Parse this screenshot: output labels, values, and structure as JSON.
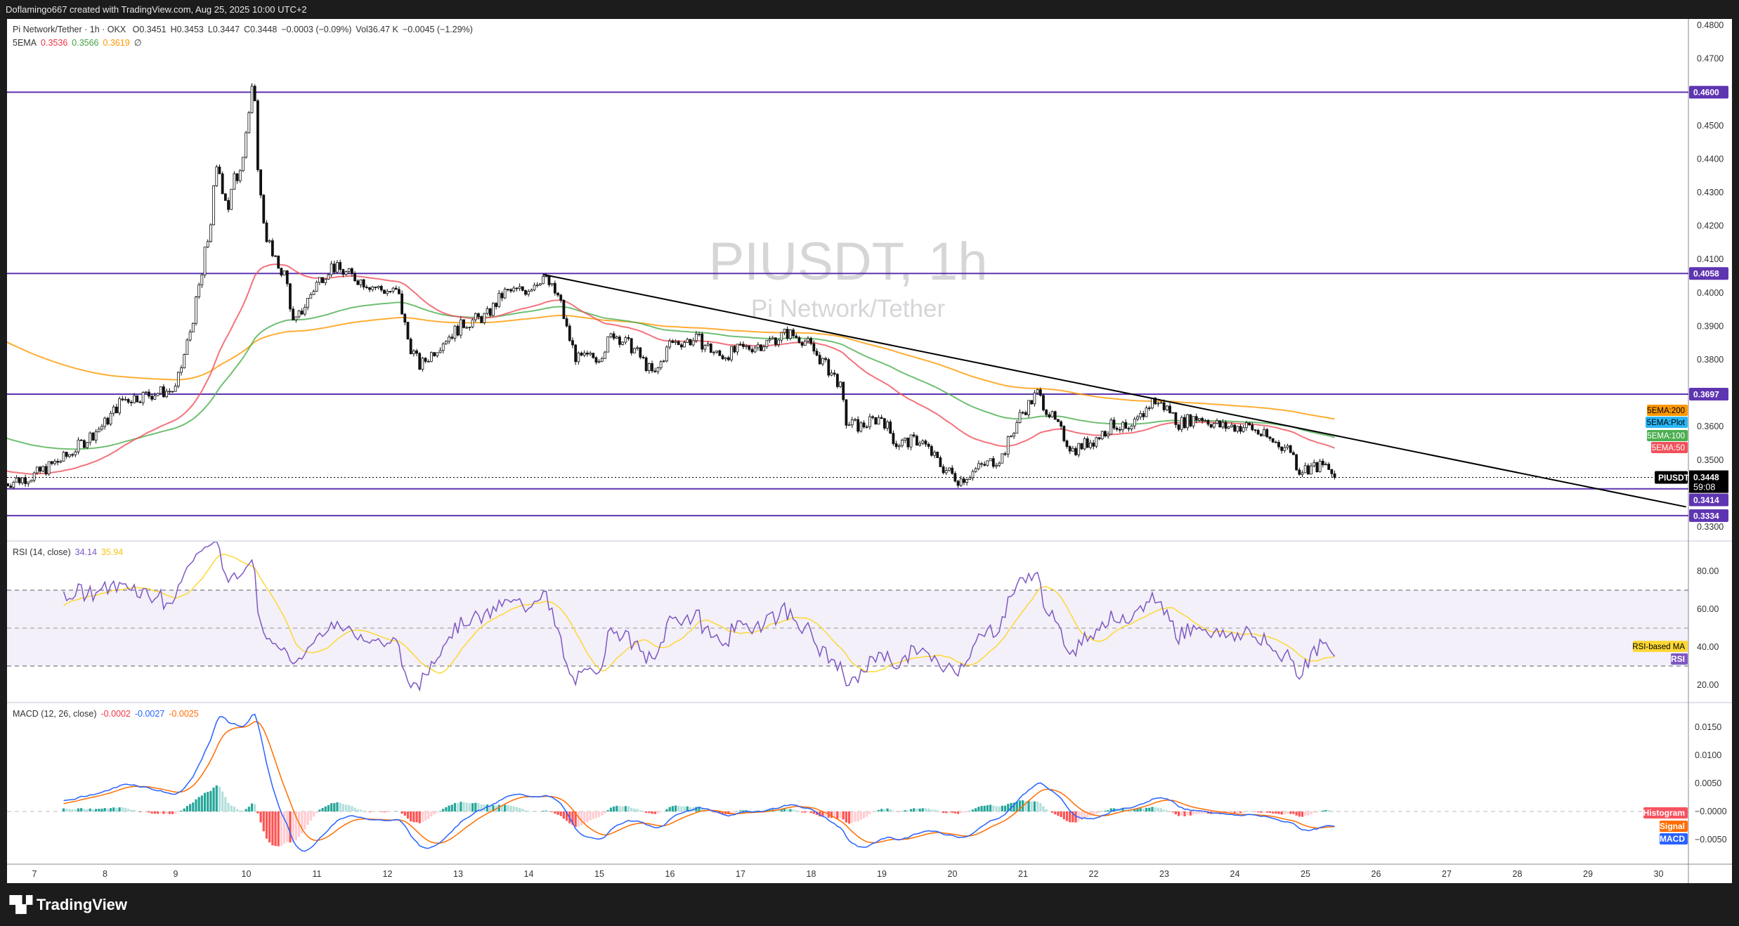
{
  "topbar": {
    "credit": "Doflamingo667 created with TradingView.com, Aug 25, 2025 10:00 UTC+2"
  },
  "legend": {
    "symbol": "Pi Network/Tether · 1h · OKX",
    "open": "O0.3451",
    "high": "H0.3453",
    "low": "L0.3447",
    "close": "C0.3448",
    "change": "−0.0003 (−0.09%)",
    "volume": "Vol36.47 K",
    "vol_change": "−0.0045 (−1.29%)",
    "ema_label": "5EMA",
    "ema50": "0.3536",
    "ema100": "0.3566",
    "ema200": "0.3619",
    "ema_extra": "∅"
  },
  "watermark": {
    "title": "PIUSDT, 1h",
    "subtitle": "Pi Network/Tether"
  },
  "colors": {
    "up": "#089981",
    "down": "#f23645",
    "level": "#5e35b1",
    "ema50": "#f0505a",
    "ema100": "#4caf50",
    "ema200": "#ff9800",
    "ema_plot": "#29b6f6",
    "rsi": "#7e57c2",
    "rsi_ma": "#fdd835",
    "macd": "#2962ff",
    "signal": "#ff6d00"
  },
  "price_axis": {
    "ticks": [
      "0.4800",
      "0.4700",
      "0.4500",
      "0.4400",
      "0.4300",
      "0.4200",
      "0.4100",
      "0.4000",
      "0.3900",
      "0.3800",
      "0.3600",
      "0.3500",
      "0.3300"
    ],
    "levels": [
      "0.4600",
      "0.4058",
      "0.3697",
      "0.3414",
      "0.3334"
    ],
    "current": {
      "symbol": "PIUSDT",
      "price": "0.3448",
      "countdown": "59:08"
    },
    "ema_tags": [
      "5EMA:200",
      "5EMA:Plot",
      "5EMA:100",
      "5EMA:50"
    ]
  },
  "rsi": {
    "label": "RSI (14, close)",
    "value": "34.14",
    "ma_value": "35.94",
    "ticks": [
      "80.00",
      "60.00",
      "40.00",
      "20.00"
    ],
    "tags": [
      "RSI-based MA",
      "RSI"
    ],
    "bands": [
      70,
      50,
      30
    ]
  },
  "macd": {
    "label": "MACD (12, 26, close)",
    "hist": "-0.0002",
    "macd": "-0.0027",
    "signal": "-0.0025",
    "ticks": [
      "0.0150",
      "0.0100",
      "0.0050",
      "−0.0000",
      "−0.0050"
    ],
    "tags": [
      "Histogram",
      "Signal",
      "MACD"
    ]
  },
  "time_axis": {
    "ticks": [
      "7",
      "8",
      "9",
      "10",
      "11",
      "12",
      "13",
      "14",
      "15",
      "16",
      "17",
      "18",
      "19",
      "20",
      "21",
      "22",
      "23",
      "24",
      "25",
      "26",
      "27",
      "28",
      "29",
      "30"
    ]
  },
  "brand": {
    "name": "TradingView"
  },
  "chart_data": {
    "type": "candlestick",
    "symbol": "PIUSDT",
    "interval": "1h",
    "x_unit": "day of August 2025",
    "ylim": [
      0.33,
      0.48
    ],
    "grid": false,
    "price_path": [
      [
        6.58,
        0.343
      ],
      [
        7.0,
        0.3455
      ],
      [
        7.45,
        0.351
      ],
      [
        8.0,
        0.361
      ],
      [
        8.24,
        0.368
      ],
      [
        8.7,
        0.37
      ],
      [
        9.0,
        0.371
      ],
      [
        9.2,
        0.388
      ],
      [
        9.4,
        0.408
      ],
      [
        9.6,
        0.438
      ],
      [
        9.75,
        0.426
      ],
      [
        9.9,
        0.438
      ],
      [
        10.1,
        0.461
      ],
      [
        10.2,
        0.428
      ],
      [
        10.35,
        0.411
      ],
      [
        10.56,
        0.405
      ],
      [
        10.67,
        0.39
      ],
      [
        11.0,
        0.403
      ],
      [
        11.2,
        0.408
      ],
      [
        11.5,
        0.405
      ],
      [
        11.9,
        0.401
      ],
      [
        12.15,
        0.4
      ],
      [
        12.3,
        0.385
      ],
      [
        12.46,
        0.378
      ],
      [
        12.8,
        0.386
      ],
      [
        13.1,
        0.391
      ],
      [
        13.4,
        0.393
      ],
      [
        13.65,
        0.4
      ],
      [
        13.97,
        0.401
      ],
      [
        14.2,
        0.405
      ],
      [
        14.44,
        0.398
      ],
      [
        14.55,
        0.388
      ],
      [
        14.68,
        0.38
      ],
      [
        15.0,
        0.381
      ],
      [
        15.2,
        0.388
      ],
      [
        15.5,
        0.383
      ],
      [
        15.78,
        0.375
      ],
      [
        16.0,
        0.385
      ],
      [
        16.4,
        0.386
      ],
      [
        16.7,
        0.381
      ],
      [
        17.0,
        0.383
      ],
      [
        17.35,
        0.385
      ],
      [
        17.66,
        0.388
      ],
      [
        17.9,
        0.386
      ],
      [
        18.1,
        0.381
      ],
      [
        18.4,
        0.373
      ],
      [
        18.5,
        0.361
      ],
      [
        18.7,
        0.36
      ],
      [
        19.0,
        0.363
      ],
      [
        19.2,
        0.355
      ],
      [
        19.55,
        0.356
      ],
      [
        19.85,
        0.348
      ],
      [
        20.1,
        0.344
      ],
      [
        20.4,
        0.348
      ],
      [
        20.7,
        0.351
      ],
      [
        20.95,
        0.363
      ],
      [
        21.2,
        0.37
      ],
      [
        21.4,
        0.363
      ],
      [
        21.7,
        0.353
      ],
      [
        22.0,
        0.356
      ],
      [
        22.3,
        0.361
      ],
      [
        22.5,
        0.358
      ],
      [
        22.84,
        0.368
      ],
      [
        23.07,
        0.365
      ],
      [
        23.2,
        0.361
      ],
      [
        23.5,
        0.363
      ],
      [
        23.8,
        0.36
      ],
      [
        24.2,
        0.36
      ],
      [
        24.5,
        0.356
      ],
      [
        24.8,
        0.353
      ],
      [
        24.9,
        0.347
      ],
      [
        25.1,
        0.348
      ],
      [
        25.3,
        0.348
      ],
      [
        25.42,
        0.3448
      ]
    ],
    "levels": [
      0.46,
      0.4058,
      0.3697,
      0.3414,
      0.3334
    ],
    "trendline": [
      [
        14.2,
        0.4055
      ],
      [
        30.39,
        0.336
      ]
    ],
    "last_close": 0.3448
  }
}
